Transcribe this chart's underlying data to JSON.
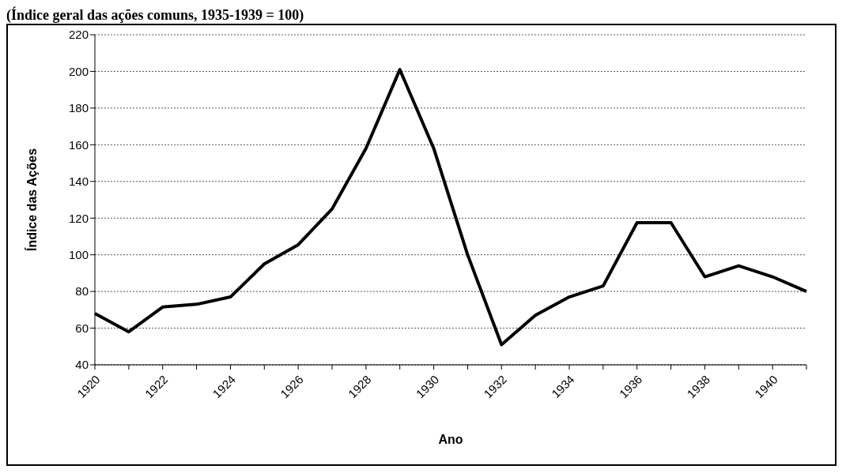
{
  "chart_data": {
    "type": "line",
    "title": "(Índice geral das ações comuns, 1935-1939 = 100)",
    "xlabel": "Ano",
    "ylabel": "Índice das Ações",
    "categories": [
      "1920",
      null,
      "1922",
      null,
      "1924",
      null,
      "1926",
      null,
      "1928",
      null,
      "1930",
      null,
      "1932",
      null,
      "1934",
      null,
      "1936",
      null,
      "1938",
      null,
      "1940",
      null
    ],
    "series": [
      {
        "color": "#000000",
        "values": [
          68,
          58,
          71.5,
          73,
          77,
          95,
          105.5,
          125,
          158,
          201,
          158,
          100,
          51,
          67,
          77,
          83,
          117.5,
          117.5,
          88,
          94,
          88,
          80
        ]
      }
    ],
    "ylim": [
      40,
      220
    ],
    "yticks": [
      40,
      60,
      80,
      100,
      120,
      140,
      160,
      180,
      200,
      220
    ],
    "grid": "y",
    "marker": "none",
    "line_style": "solid"
  }
}
